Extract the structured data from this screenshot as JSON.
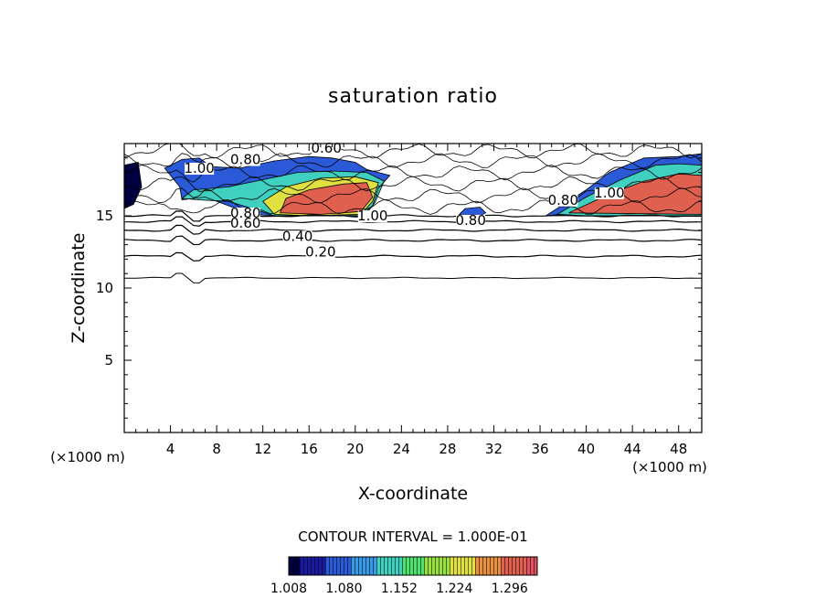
{
  "chart_data": {
    "type": "heatmap",
    "title": "saturation ratio",
    "xlabel": "X-coordinate",
    "ylabel": "Z-coordinate",
    "x_unit_left": "(×1000 m)",
    "x_unit_right": "(×1000 m)",
    "xlim": [
      0,
      50
    ],
    "ylim": [
      0,
      20
    ],
    "x_ticks": [
      4,
      8,
      12,
      16,
      20,
      24,
      28,
      32,
      36,
      40,
      44,
      48
    ],
    "x_tick_labels": [
      "4",
      "8",
      "12",
      "16",
      "20",
      "24",
      "28",
      "32",
      "36",
      "40",
      "44",
      "48"
    ],
    "y_ticks": [
      5,
      10,
      15
    ],
    "y_tick_labels": [
      "5",
      "10",
      "15"
    ],
    "contour_interval_text": "CONTOUR INTERVAL = 1.000E-01",
    "colorbar": {
      "range": [
        1.008,
        1.332
      ],
      "tick_labels": [
        "1.008",
        "1.080",
        "1.152",
        "1.224",
        "1.296"
      ],
      "colors": [
        "#000040",
        "#1a1aa0",
        "#2a5ad8",
        "#3a9ae8",
        "#40d0c0",
        "#50e070",
        "#9ae040",
        "#e0e040",
        "#e89040",
        "#e06050",
        "#e05060"
      ]
    },
    "level_lines": [
      {
        "level": 0.2,
        "label": "0.20",
        "z": 12.2
      },
      {
        "level": 0.4,
        "label": "0.40",
        "z": 13.3
      },
      {
        "level": 0.6,
        "label": "0.60",
        "z": 14.0
      },
      {
        "level": 0.8,
        "label": "0.80",
        "z": 14.6
      },
      {
        "level": 1.0,
        "label": "1.00",
        "z": 15.0
      }
    ],
    "boundary_line_z": 10.7,
    "contour_labels": [
      {
        "text": "0.60",
        "x": 17.5,
        "z": 19.5
      },
      {
        "text": "0.80",
        "x": 10.5,
        "z": 18.7
      },
      {
        "text": "1.00",
        "x": 6.5,
        "z": 18.1
      },
      {
        "text": "0.80",
        "x": 10.5,
        "z": 15.0
      },
      {
        "text": "0.60",
        "x": 10.5,
        "z": 14.3
      },
      {
        "text": "0.40",
        "x": 15,
        "z": 13.4
      },
      {
        "text": "0.20",
        "x": 17,
        "z": 12.3
      },
      {
        "text": "1.00",
        "x": 21.5,
        "z": 14.8
      },
      {
        "text": "0.80",
        "x": 30,
        "z": 14.5
      },
      {
        "text": "0.80",
        "x": 38,
        "z": 15.9
      },
      {
        "text": "1.00",
        "x": 42,
        "z": 16.4
      }
    ],
    "supersaturated_regions": [
      {
        "level": 1.296,
        "polygon": [
          [
            13.5,
            15.2
          ],
          [
            14,
            16.2
          ],
          [
            16,
            16.8
          ],
          [
            19,
            17.2
          ],
          [
            21,
            17.3
          ],
          [
            21.5,
            16.3
          ],
          [
            20.5,
            15.3
          ],
          [
            17,
            15.1
          ]
        ]
      },
      {
        "level": 1.224,
        "polygon": [
          [
            13,
            15.1
          ],
          [
            12,
            16
          ],
          [
            14,
            17
          ],
          [
            17,
            17.6
          ],
          [
            20,
            17.7
          ],
          [
            22,
            17.3
          ],
          [
            21.5,
            16
          ],
          [
            20.5,
            15.1
          ],
          [
            16,
            15
          ]
        ]
      },
      {
        "level": 1.152,
        "polygon": [
          [
            5,
            16.2
          ],
          [
            6,
            16.8
          ],
          [
            9,
            17
          ],
          [
            12,
            17.5
          ],
          [
            15,
            18
          ],
          [
            18,
            18.1
          ],
          [
            21,
            18
          ],
          [
            22.5,
            17.4
          ],
          [
            21.7,
            15.9
          ],
          [
            20.8,
            15
          ],
          [
            13,
            15
          ],
          [
            11.5,
            15.4
          ],
          [
            9,
            16
          ],
          [
            6.5,
            16.1
          ]
        ]
      },
      {
        "level": 1.08,
        "polygon": [
          [
            3.5,
            18.3
          ],
          [
            5,
            18.9
          ],
          [
            6.5,
            19
          ],
          [
            7.5,
            18.4
          ],
          [
            10,
            18.3
          ],
          [
            13,
            18.8
          ],
          [
            16,
            19.1
          ],
          [
            18,
            19
          ],
          [
            20,
            18.7
          ],
          [
            21,
            18.2
          ],
          [
            23,
            17.8
          ],
          [
            22,
            16.9
          ],
          [
            21.5,
            15.7
          ],
          [
            20.5,
            15
          ],
          [
            13,
            15
          ],
          [
            11,
            15.1
          ],
          [
            9,
            15.7
          ],
          [
            7,
            16.3
          ],
          [
            5,
            16.1
          ],
          [
            4.8,
            17
          ]
        ]
      },
      {
        "level": 1.008,
        "polygon": [
          [
            0,
            18.5
          ],
          [
            1.2,
            18.7
          ],
          [
            1.5,
            17
          ],
          [
            0.8,
            15.8
          ],
          [
            0,
            15.5
          ]
        ]
      },
      {
        "level": 1.296,
        "polygon": [
          [
            38.5,
            15.2
          ],
          [
            42,
            16.5
          ],
          [
            45,
            17.4
          ],
          [
            48,
            17.9
          ],
          [
            50,
            17.8
          ],
          [
            50,
            15.1
          ]
        ]
      },
      {
        "level": 1.152,
        "polygon": [
          [
            37.5,
            15.1
          ],
          [
            40,
            16.3
          ],
          [
            43,
            17.5
          ],
          [
            46,
            18.5
          ],
          [
            48,
            18.6
          ],
          [
            50,
            18.5
          ],
          [
            50,
            15
          ],
          [
            40,
            15
          ]
        ]
      },
      {
        "level": 1.08,
        "polygon": [
          [
            36.5,
            15
          ],
          [
            40,
            16.8
          ],
          [
            42,
            18
          ],
          [
            45,
            19
          ],
          [
            48,
            19.1
          ],
          [
            50,
            19.3
          ],
          [
            50,
            15
          ]
        ]
      },
      {
        "level": 1.08,
        "polygon": [
          [
            29,
            15.1
          ],
          [
            29.5,
            15.5
          ],
          [
            30.8,
            15.6
          ],
          [
            31.3,
            15.2
          ],
          [
            30.5,
            14.9
          ]
        ]
      }
    ]
  }
}
